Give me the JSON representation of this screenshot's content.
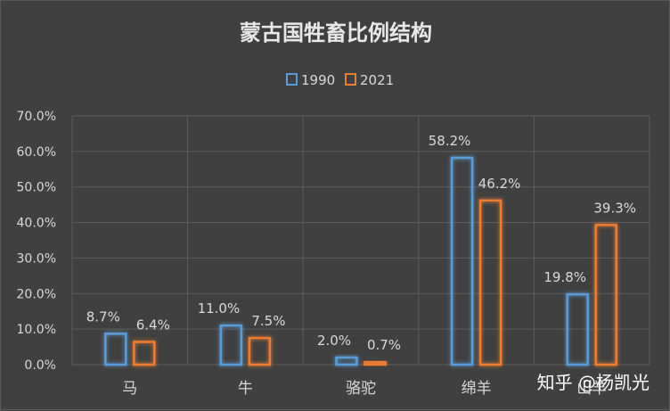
{
  "chart_data": {
    "type": "bar",
    "title": "蒙古国牲畜比例结构",
    "categories": [
      "马",
      "牛",
      "骆驼",
      "绵羊",
      "山羊"
    ],
    "series": [
      {
        "name": "1990",
        "values": [
          8.7,
          11.0,
          2.0,
          58.2,
          19.8
        ],
        "labels": [
          "8.7%",
          "11.0%",
          "2.0%",
          "58.2%",
          "19.8%"
        ],
        "color": "#5b9bd5"
      },
      {
        "name": "2021",
        "values": [
          6.4,
          7.5,
          0.7,
          46.2,
          39.3
        ],
        "labels": [
          "6.4%",
          "7.5%",
          "0.7%",
          "46.2%",
          "39.3%"
        ],
        "color": "#ed7d31"
      }
    ],
    "yticks": [
      "0.0%",
      "10.0%",
      "20.0%",
      "30.0%",
      "40.0%",
      "50.0%",
      "60.0%",
      "70.0%"
    ],
    "ylim": [
      0,
      70
    ],
    "grid": true,
    "legend_position": "top"
  },
  "watermark": "知乎 @杨凯光",
  "colors": {
    "background": "#404040",
    "grid": "#5e5e5e",
    "text": "#d9d9d9"
  }
}
